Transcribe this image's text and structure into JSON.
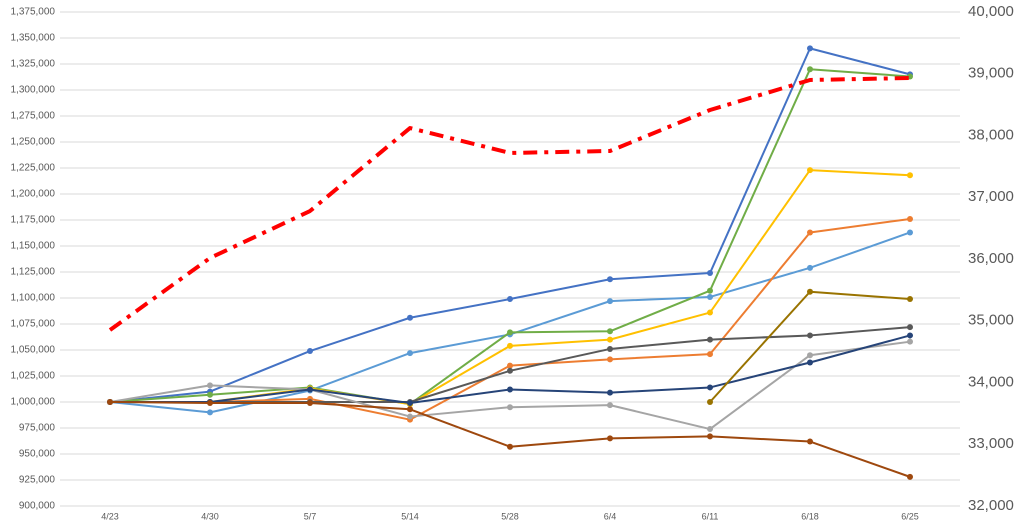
{
  "chart_data": {
    "type": "line",
    "categories": [
      "4/23",
      "4/30",
      "5/7",
      "5/14",
      "5/28",
      "6/4",
      "6/11",
      "6/18",
      "6/25"
    ],
    "ylim": [
      900000,
      1375000
    ],
    "yticks": [
      {
        "value": 900000,
        "label": "900,000"
      },
      {
        "value": 925000,
        "label": "925,000"
      },
      {
        "value": 950000,
        "label": "950,000"
      },
      {
        "value": 975000,
        "label": "975,000"
      },
      {
        "value": 1000000,
        "label": "1,000,000"
      },
      {
        "value": 1025000,
        "label": "1,025,000"
      },
      {
        "value": 1050000,
        "label": "1,050,000"
      },
      {
        "value": 1075000,
        "label": "1,075,000"
      },
      {
        "value": 1100000,
        "label": "1,100,000"
      },
      {
        "value": 1125000,
        "label": "1,125,000"
      },
      {
        "value": 1150000,
        "label": "1,150,000"
      },
      {
        "value": 1175000,
        "label": "1,175,000"
      },
      {
        "value": 1200000,
        "label": "1,200,000"
      },
      {
        "value": 1225000,
        "label": "1,225,000"
      },
      {
        "value": 1250000,
        "label": "1,250,000"
      },
      {
        "value": 1275000,
        "label": "1,275,000"
      },
      {
        "value": 1300000,
        "label": "1,300,000"
      },
      {
        "value": 1325000,
        "label": "1,325,000"
      },
      {
        "value": 1350000,
        "label": "1,350,000"
      },
      {
        "value": 1375000,
        "label": "1,375,000"
      }
    ],
    "y2lim": [
      32000,
      40000
    ],
    "y2ticks": [
      {
        "value": 32000,
        "label": "32,000"
      },
      {
        "value": 33000,
        "label": "33,000"
      },
      {
        "value": 34000,
        "label": "34,000"
      },
      {
        "value": 35000,
        "label": "35,000"
      },
      {
        "value": 36000,
        "label": "36,000"
      },
      {
        "value": 37000,
        "label": "37,000"
      },
      {
        "value": 38000,
        "label": "38,000"
      },
      {
        "value": 39000,
        "label": "39,000"
      },
      {
        "value": 40000,
        "label": "40,000"
      }
    ],
    "grid": true,
    "series": [
      {
        "color": "#4472c4",
        "values": [
          1000000,
          1010000,
          1049000,
          1081000,
          1099000,
          1118000,
          1124000,
          1340000,
          1315000
        ]
      },
      {
        "color": "#5b9bd5",
        "values": [
          1000000,
          990000,
          1011000,
          1047000,
          1065000,
          1097000,
          1101000,
          1129000,
          1163000
        ]
      },
      {
        "color": "#70ad47",
        "values": [
          1000000,
          1007000,
          1014000,
          998000,
          1067000,
          1068000,
          1107000,
          1320000,
          1313000
        ]
      },
      {
        "color": "#ffc000",
        "values": [
          1000000,
          1000000,
          1013000,
          998000,
          1054000,
          1060000,
          1086000,
          1223000,
          1218000
        ]
      },
      {
        "color": "#ed7d31",
        "values": [
          1000000,
          1000000,
          1003000,
          983000,
          1035000,
          1041000,
          1046000,
          1163000,
          1176000
        ]
      },
      {
        "color": "#595959",
        "values": [
          1000000,
          1000000,
          1000000,
          1000000,
          1030000,
          1051000,
          1060000,
          1064000,
          1072000
        ]
      },
      {
        "color": "#a5a5a5",
        "values": [
          1000000,
          1016000,
          1012000,
          986000,
          995000,
          997000,
          974000,
          1045000,
          1058000
        ]
      },
      {
        "color": "#264478",
        "values": [
          1000000,
          1000000,
          1012000,
          999000,
          1012000,
          1009000,
          1014000,
          1038000,
          1064000
        ]
      },
      {
        "color": "#9e480e",
        "values": [
          1000000,
          999000,
          999000,
          993000,
          957000,
          965000,
          967000,
          962000,
          928000
        ]
      },
      {
        "color": "#997300",
        "values": [
          null,
          null,
          null,
          null,
          null,
          null,
          1000000,
          1106000,
          1099000
        ]
      },
      {
        "color": "#ff0000",
        "axis": "y2",
        "dash": true,
        "values": [
          34850,
          36016,
          36777,
          38121,
          37717,
          37749,
          38413,
          38899,
          38931
        ]
      }
    ]
  }
}
